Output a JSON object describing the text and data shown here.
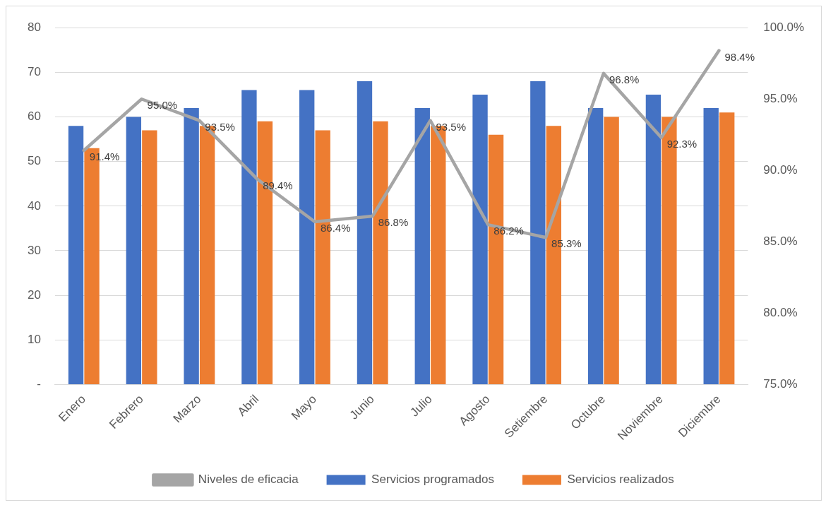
{
  "chart_data": {
    "type": "bar",
    "categories": [
      "Enero",
      "Febrero",
      "Marzo",
      "Abril",
      "Mayo",
      "Junio",
      "Julio",
      "Agosto",
      "Setiembre",
      "Octubre",
      "Noviembre",
      "Diciembre"
    ],
    "series": [
      {
        "name": "Servicios programados",
        "color": "#4472c4",
        "values": [
          58,
          60,
          62,
          66,
          66,
          68,
          62,
          65,
          68,
          62,
          65,
          62
        ]
      },
      {
        "name": "Servicios realizados",
        "color": "#ed7d31",
        "values": [
          53,
          57,
          58,
          59,
          57,
          59,
          58,
          56,
          58,
          60,
          60,
          61
        ]
      },
      {
        "name": "Niveles de eficacia",
        "type": "line",
        "axis": "y2",
        "color": "#a5a5a5",
        "marker": "none",
        "values": [
          91.4,
          95.0,
          93.5,
          89.4,
          86.4,
          86.8,
          93.5,
          86.2,
          85.3,
          96.8,
          92.3,
          98.4
        ],
        "value_labels": [
          "91.4%",
          "95.0%",
          "93.5%",
          "89.4%",
          "86.4%",
          "86.8%",
          "93.5%",
          "86.2%",
          "85.3%",
          "96.8%",
          "92.3%",
          "98.4%"
        ]
      }
    ],
    "ylim": [
      0,
      80
    ],
    "yticks": [
      {
        "value": 0,
        "label": "-"
      },
      10,
      20,
      30,
      40,
      50,
      60,
      70,
      80
    ],
    "y2lim": [
      75,
      100
    ],
    "y2ticks": [
      {
        "value": 75,
        "label": "75.0%"
      },
      {
        "value": 80,
        "label": "80.0%"
      },
      {
        "value": 85,
        "label": "85.0%"
      },
      {
        "value": 90,
        "label": "90.0%"
      },
      {
        "value": 95,
        "label": "95.0%"
      },
      {
        "value": 100,
        "label": "100.0%"
      }
    ],
    "grid": "y",
    "legend": "bottom"
  }
}
